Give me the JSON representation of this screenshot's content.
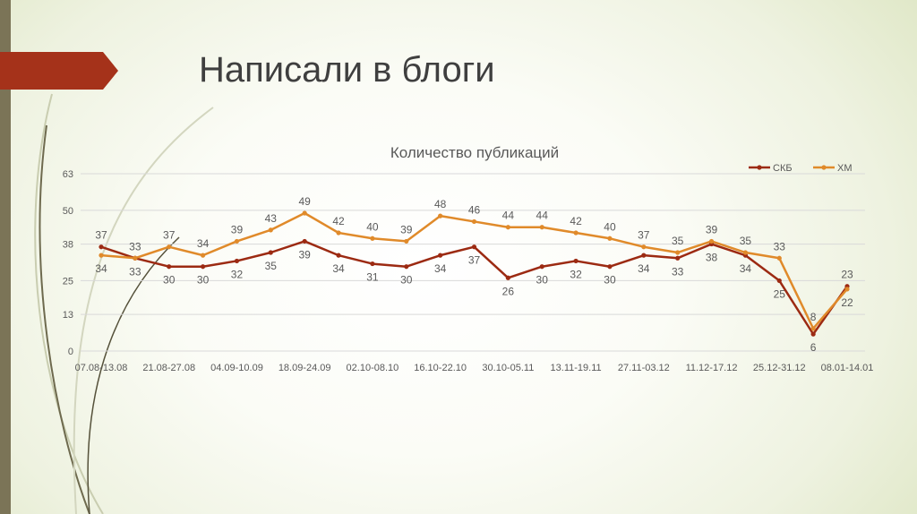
{
  "slide": {
    "title": "Написали в блоги",
    "colors": {
      "left_bar": "#7b7457",
      "banner": "#a5321a"
    }
  },
  "chart_data": {
    "type": "line",
    "title": "Количество публикаций",
    "xlabel": "",
    "ylabel": "",
    "x_tick_labels": [
      "07.08-13.08",
      "21.08-27.08",
      "04.09-10.09",
      "18.09-24.09",
      "02.10-08.10",
      "16.10-22.10",
      "30.10-05.11",
      "13.11-19.11",
      "27.11-03.12",
      "11.12-17.12",
      "25.12-31.12",
      "08.01-14.01"
    ],
    "x_tick_every": 2,
    "y_ticks": [
      0,
      13,
      25,
      38,
      50,
      63
    ],
    "ylim": [
      0,
      63
    ],
    "grid": true,
    "legend": "top-right",
    "data_labels": true,
    "series": [
      {
        "name": "СКБ",
        "color": "#9c2a12",
        "values": [
          37,
          33,
          30,
          30,
          32,
          35,
          39,
          34,
          31,
          30,
          34,
          37,
          26,
          30,
          32,
          30,
          34,
          33,
          38,
          34,
          25,
          6,
          23
        ]
      },
      {
        "name": "ХМ",
        "color": "#e08a2a",
        "values": [
          34,
          33,
          37,
          34,
          39,
          43,
          49,
          42,
          40,
          39,
          48,
          46,
          44,
          44,
          42,
          40,
          37,
          35,
          39,
          35,
          33,
          8,
          22
        ]
      }
    ]
  }
}
